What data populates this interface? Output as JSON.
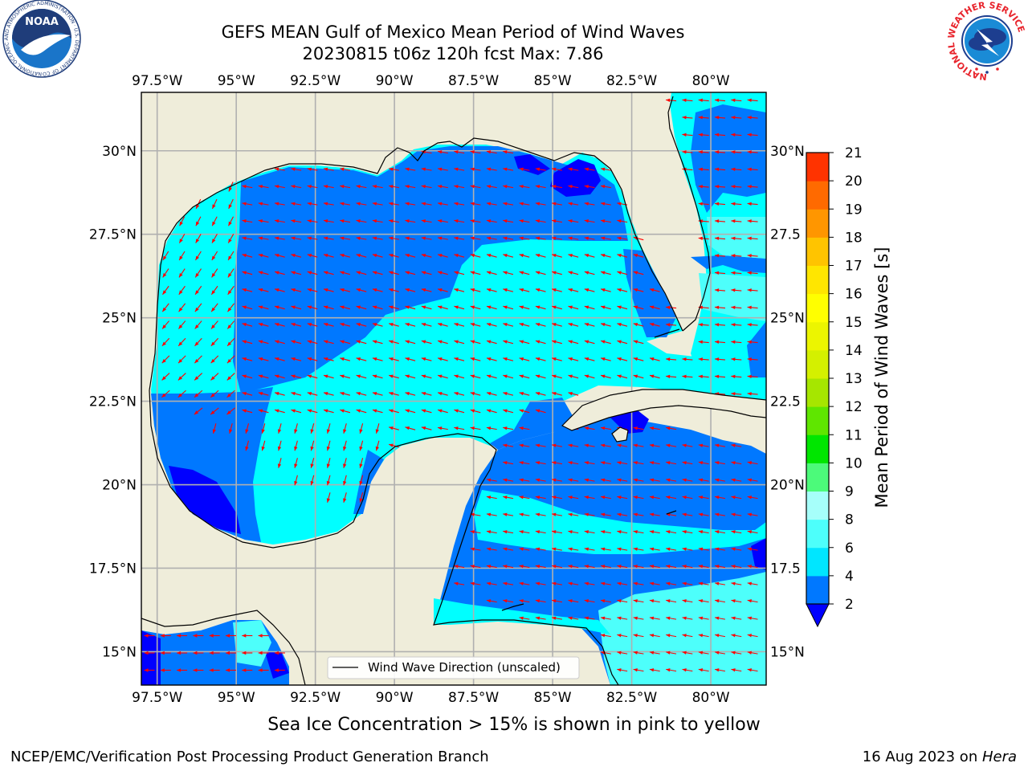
{
  "header": {
    "title_line1": "GEFS MEAN Gulf of Mexico Mean Period of Wind Waves",
    "title_line2": "20230815 t06z 120h fcst   Max: 7.86"
  },
  "logos": {
    "noaa_label": "NOAA",
    "noaa_ring_text": "NATIONAL OCEANIC AND ATMOSPHERIC ADMINISTRATION · U.S. DEPARTMENT OF COMMERCE",
    "nws_ring_text": "NATIONAL WEATHER SERVICE"
  },
  "map": {
    "lon_ticks": [
      "97.5°W",
      "95°W",
      "92.5°W",
      "90°W",
      "87.5°W",
      "85°W",
      "82.5°W",
      "80°W"
    ],
    "lon_values": [
      -97.5,
      -95,
      -92.5,
      -90,
      -87.5,
      -85,
      -82.5,
      -80
    ],
    "lat_ticks_left": [
      "30°N",
      "27.5°N",
      "25°N",
      "22.5°N",
      "20°N",
      "17.5°N",
      "15°N"
    ],
    "lat_ticks_right": [
      "30°N",
      "27.5",
      "25°N",
      "22.5",
      "20°N",
      "17.5",
      "15°N"
    ],
    "lat_values": [
      30,
      27.5,
      25,
      22.5,
      20,
      17.5,
      15
    ],
    "extent": {
      "lon_min": -98,
      "lon_max": -78.25,
      "lat_min": 14,
      "lat_max": 31.75
    },
    "legend_label": "Wind Wave Direction (unscaled)",
    "land_color": "#efedda",
    "arrow_color": "#ff0000",
    "grid_color": "#b0b0b0"
  },
  "colorbar": {
    "label": "Mean Period of Wind Waves [s]",
    "ticks": [
      "2",
      "4",
      "6",
      "8",
      "9",
      "10",
      "11",
      "12",
      "13",
      "14",
      "15",
      "16",
      "17",
      "18",
      "19",
      "20",
      "21"
    ],
    "colors": [
      "#0078ff",
      "#00e6ff",
      "#4dfffb",
      "#a6fffa",
      "#4cfa7a",
      "#00e600",
      "#5fe600",
      "#a6e600",
      "#d4f000",
      "#ecf500",
      "#ffff00",
      "#ffe600",
      "#ffc400",
      "#ff9600",
      "#ff6a00",
      "#ff3300"
    ],
    "under_color": "#0000ff"
  },
  "caption": "Sea Ice Concentration > 15% is shown in pink to yellow",
  "footer": {
    "left": "NCEP/EMC/Verification Post Processing Product Generation Branch",
    "date": "16 Aug 2023 on ",
    "host": "Hera"
  }
}
